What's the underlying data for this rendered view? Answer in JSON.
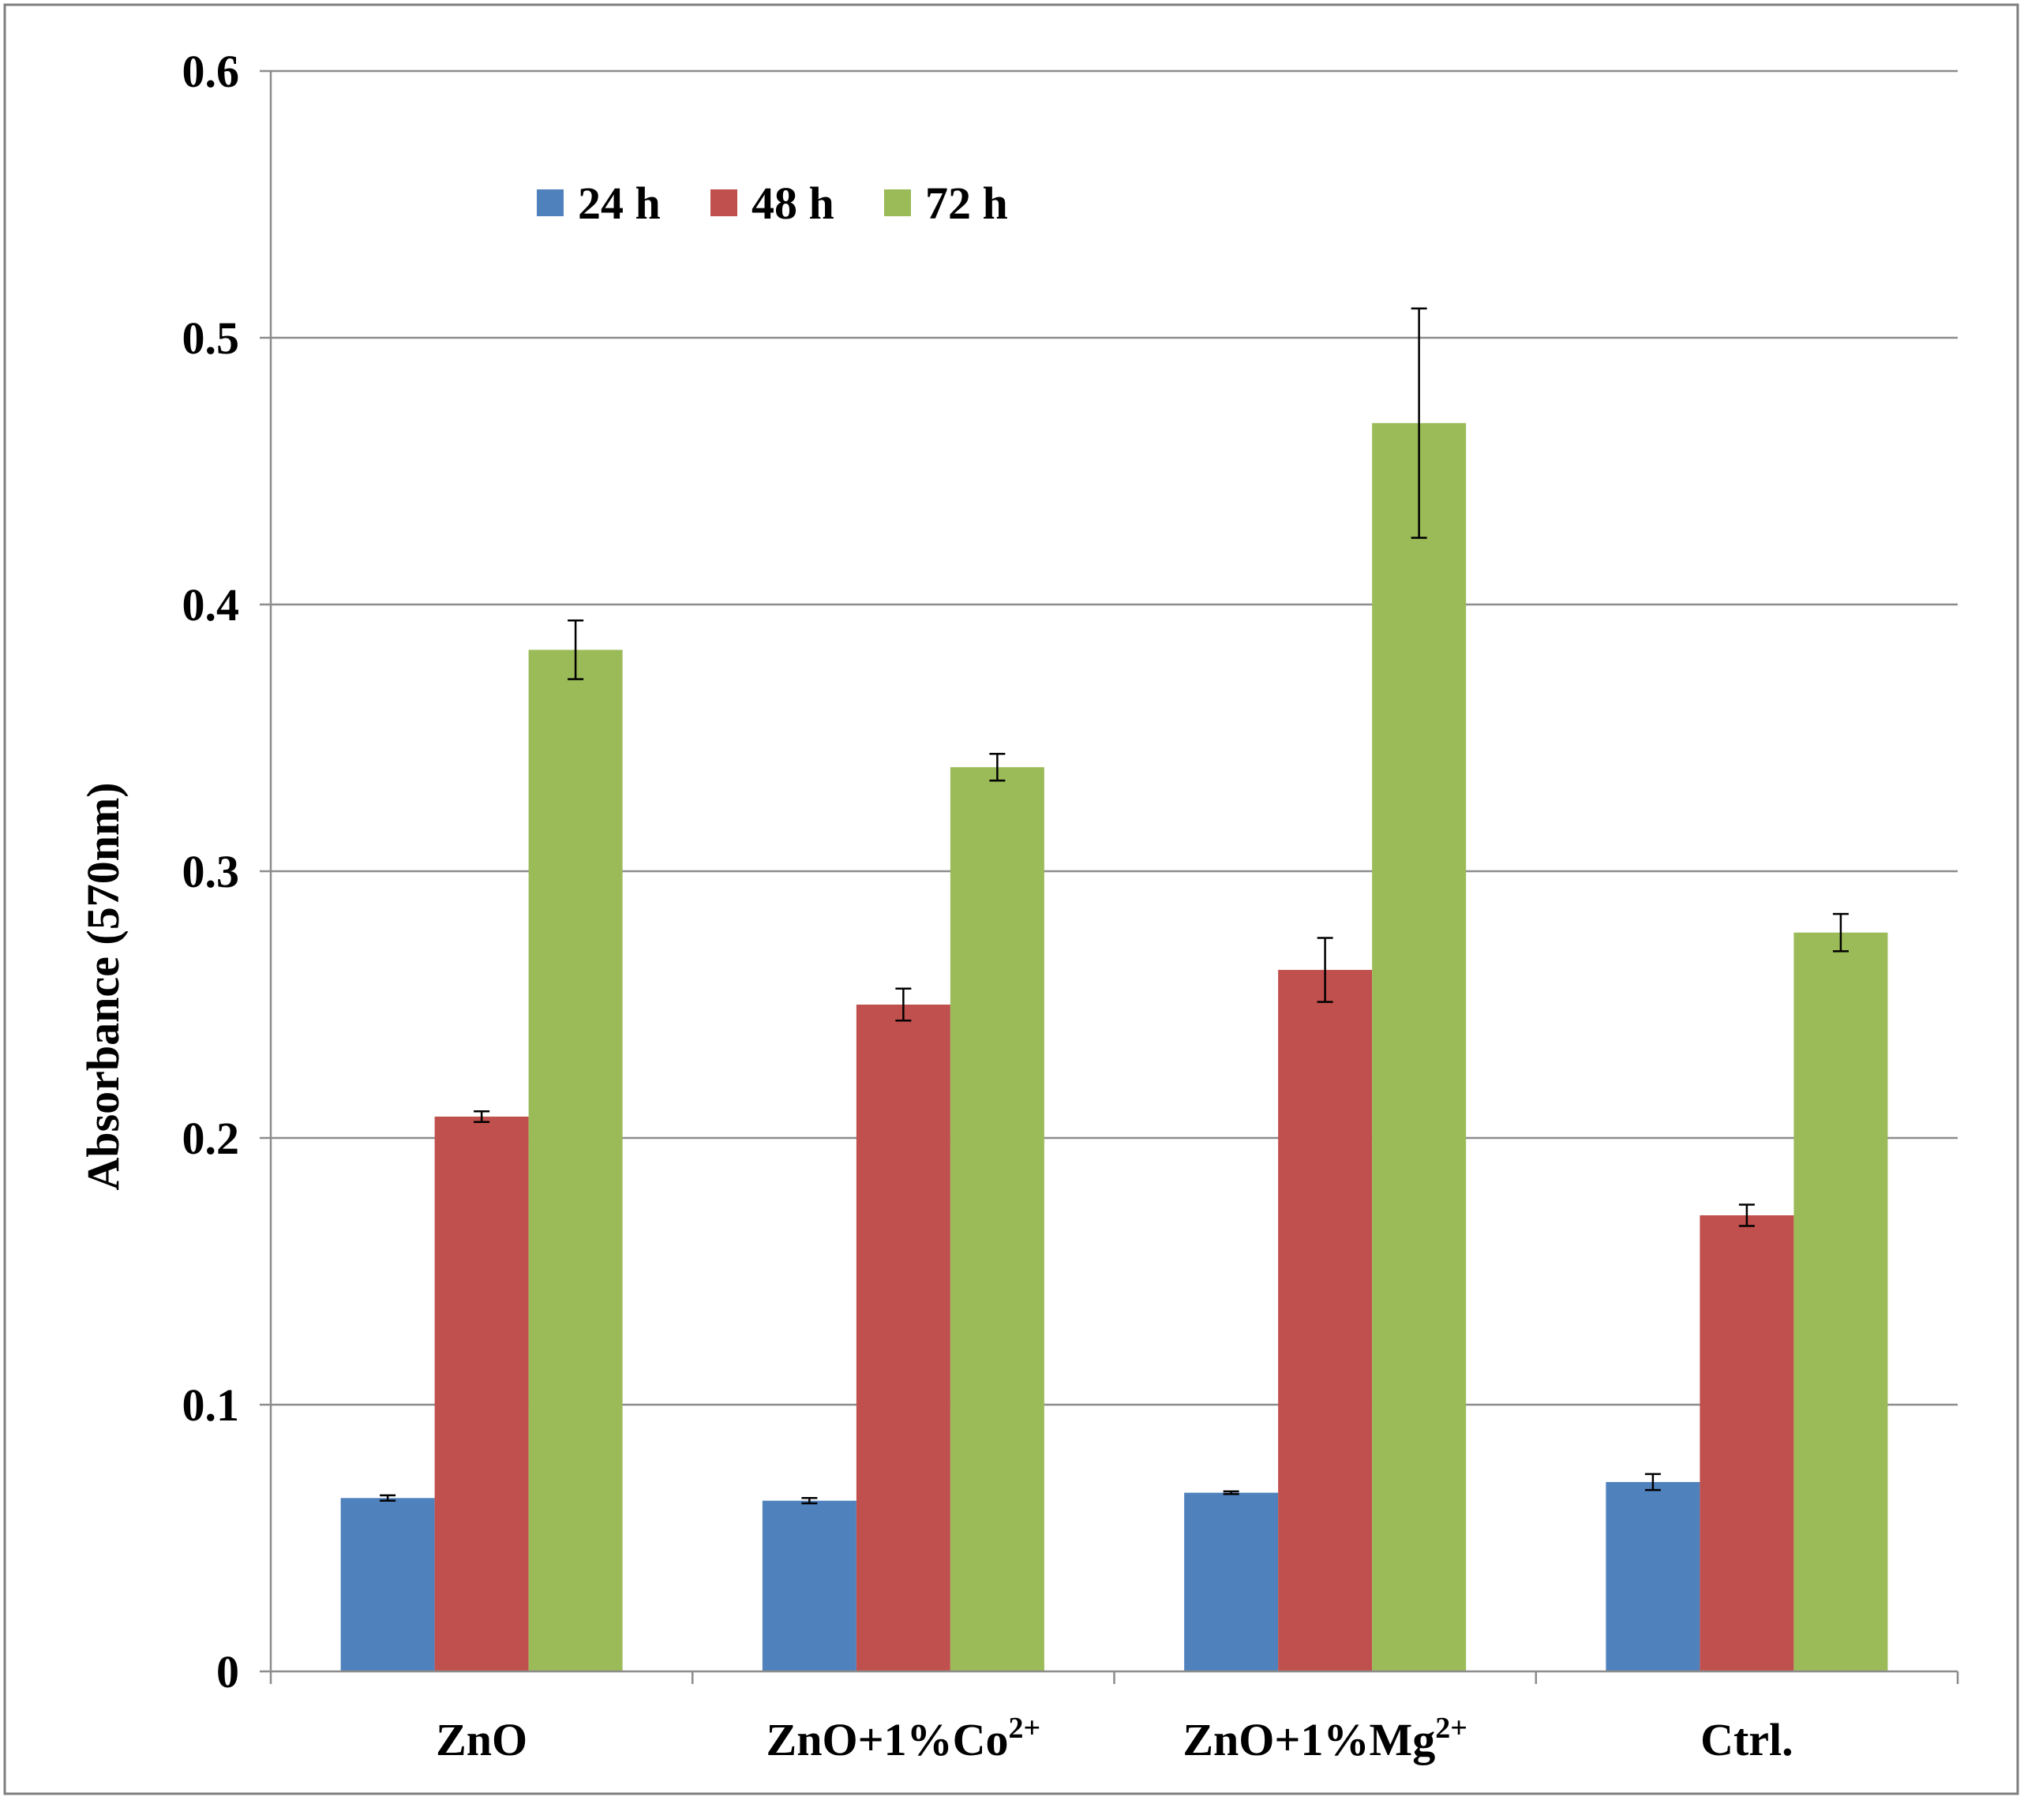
{
  "chart_data": {
    "type": "bar",
    "title": "",
    "xlabel": "",
    "ylabel": "Absorbance (570nm)",
    "ylim": [
      0,
      0.6
    ],
    "yticks": [
      0,
      0.1,
      0.2,
      0.3,
      0.4,
      0.5,
      0.6
    ],
    "ytick_labels": [
      "0",
      "0.1",
      "0.2",
      "0.3",
      "0.4",
      "0.5",
      "0.6"
    ],
    "grid": true,
    "legend_position": "top-left inside",
    "categories": [
      {
        "base": "ZnO",
        "sup": ""
      },
      {
        "base": "ZnO+1%Co",
        "sup": "2+"
      },
      {
        "base": "ZnO+1%Mg",
        "sup": "2+"
      },
      {
        "base": "Ctrl.",
        "sup": ""
      }
    ],
    "series": [
      {
        "name": "24 h",
        "color": "#4F81BD",
        "values": [
          0.065,
          0.064,
          0.067,
          0.071
        ],
        "errors": [
          0.001,
          0.001,
          0.0005,
          0.003
        ]
      },
      {
        "name": "48 h",
        "color": "#C0504D",
        "values": [
          0.208,
          0.25,
          0.263,
          0.171
        ],
        "errors": [
          0.002,
          0.006,
          0.012,
          0.004
        ]
      },
      {
        "name": "72 h",
        "color": "#9BBB59",
        "values": [
          0.383,
          0.339,
          0.468,
          0.277
        ],
        "errors": [
          0.011,
          0.005,
          0.043,
          0.007
        ]
      }
    ]
  }
}
